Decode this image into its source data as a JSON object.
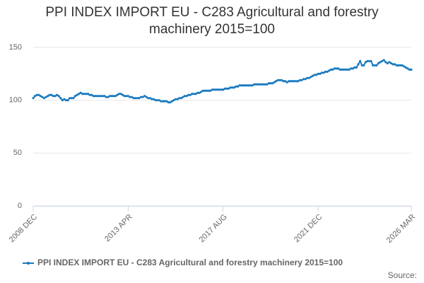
{
  "chart_data": {
    "type": "line",
    "title": "PPI INDEX IMPORT EU - C283 Agricultural and forestry machinery 2015=100",
    "source": "Source:",
    "categories": [
      "2008 DEC",
      null,
      null,
      null,
      null,
      null,
      null,
      null,
      null,
      null,
      null,
      null,
      null,
      null,
      null,
      null,
      null,
      null,
      null,
      null,
      null,
      null,
      null,
      null,
      null,
      null,
      null,
      null,
      null,
      null,
      null,
      null,
      null,
      null,
      null,
      null,
      null,
      null,
      null,
      null,
      null,
      null,
      null,
      null,
      null,
      null,
      null,
      null,
      null,
      null,
      null,
      null,
      "2013 APR",
      null,
      null,
      null,
      null,
      null,
      null,
      null,
      null,
      null,
      null,
      null,
      null,
      null,
      null,
      null,
      null,
      null,
      null,
      null,
      null,
      null,
      null,
      null,
      null,
      null,
      null,
      null,
      null,
      null,
      null,
      null,
      null,
      null,
      null,
      null,
      null,
      null,
      null,
      null,
      null,
      null,
      null,
      null,
      null,
      null,
      null,
      null,
      null,
      null,
      null,
      null,
      "2017 AUG",
      null,
      null,
      null,
      null,
      null,
      null,
      null,
      null,
      null,
      null,
      null,
      null,
      null,
      null,
      null,
      null,
      null,
      null,
      null,
      null,
      null,
      null,
      null,
      null,
      null,
      null,
      null,
      null,
      null,
      null,
      null,
      null,
      null,
      null,
      null,
      null,
      null,
      null,
      null,
      null,
      null,
      null,
      null,
      null,
      null,
      null,
      null,
      null,
      null,
      null,
      null,
      "2021 DEC",
      null,
      null,
      null,
      null,
      null,
      null,
      null,
      null,
      null,
      null,
      null,
      null,
      null,
      null,
      null,
      null,
      null,
      null,
      null,
      null,
      null,
      null,
      null,
      null,
      null,
      null,
      null,
      null,
      null,
      null,
      null,
      null,
      null,
      null,
      null,
      null,
      null,
      null,
      null,
      null,
      null,
      null,
      null,
      null,
      null,
      null,
      null,
      null,
      null,
      null,
      "2026 MAR"
    ],
    "series": [
      {
        "name": "PPI INDEX IMPORT EU - C283 Agricultural and forestry machinery 2015=100",
        "color": "#1a7abf",
        "values": [
          102,
          104,
          105,
          105,
          104,
          103,
          102,
          103,
          104,
          105,
          105,
          104,
          104,
          105,
          104,
          102,
          100,
          101,
          100,
          100,
          102,
          102,
          102,
          104,
          105,
          106,
          107,
          106,
          106,
          106,
          106,
          105,
          105,
          104,
          104,
          104,
          104,
          104,
          104,
          104,
          103,
          103,
          104,
          104,
          104,
          104,
          105,
          106,
          106,
          105,
          104,
          104,
          104,
          103,
          103,
          102,
          102,
          102,
          102,
          103,
          103,
          104,
          103,
          102,
          102,
          101,
          101,
          100,
          100,
          100,
          99,
          99,
          99,
          99,
          98,
          98,
          99,
          100,
          101,
          101,
          102,
          102,
          103,
          104,
          104,
          105,
          105,
          106,
          106,
          106,
          107,
          107,
          108,
          109,
          109,
          109,
          109,
          109,
          110,
          110,
          110,
          110,
          110,
          110,
          110,
          111,
          111,
          111,
          112,
          112,
          112,
          113,
          113,
          114,
          114,
          114,
          114,
          114,
          114,
          114,
          114,
          115,
          115,
          115,
          115,
          115,
          115,
          115,
          115,
          116,
          116,
          116,
          117,
          118,
          119,
          119,
          119,
          118,
          118,
          117,
          118,
          118,
          118,
          118,
          118,
          118,
          119,
          119,
          120,
          120,
          121,
          121,
          122,
          123,
          124,
          124,
          125,
          125,
          126,
          126,
          127,
          127,
          128,
          129,
          129,
          130,
          130,
          130,
          129,
          129,
          129,
          129,
          129,
          129,
          130,
          130,
          131,
          131,
          134,
          137,
          133,
          133,
          136,
          137,
          137,
          137,
          133,
          133,
          133,
          135,
          136,
          137,
          138,
          136,
          135,
          136,
          135,
          134,
          134,
          133,
          133,
          133,
          133,
          132,
          131,
          130,
          129,
          129
        ]
      }
    ],
    "ylim": [
      0,
      150
    ],
    "yticks": [
      0,
      50,
      100,
      150
    ],
    "grid": true
  }
}
